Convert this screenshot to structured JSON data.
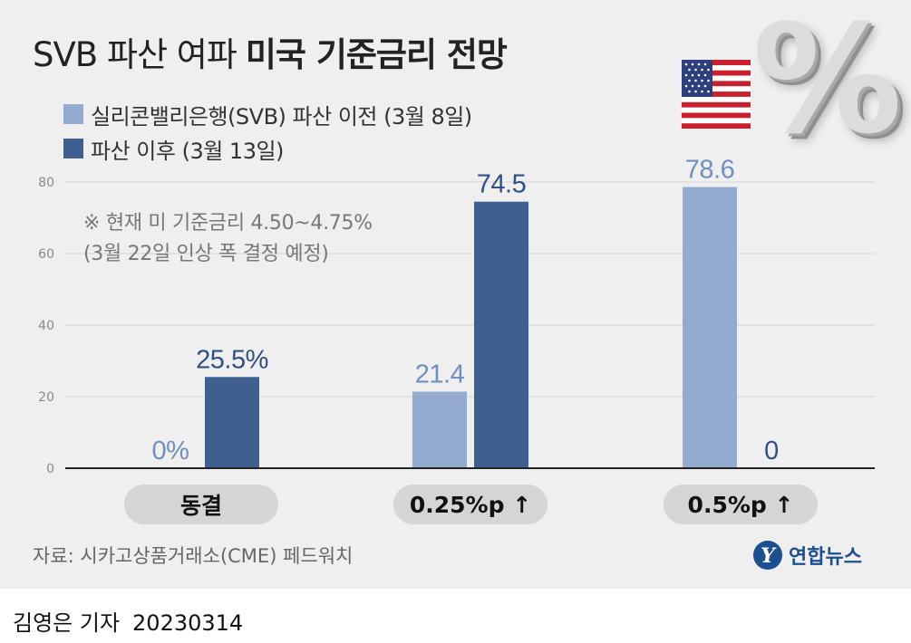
{
  "header": {
    "title_light": "SVB 파산 여파",
    "title_bold": "미국 기준금리 전망"
  },
  "legend": [
    {
      "label": "실리콘밸리은행(SVB) 파산 이전 (3월 8일)",
      "color": "#94abcf"
    },
    {
      "label": "파산 이후 (3월 13일)",
      "color": "#3e6090"
    }
  ],
  "note": {
    "line1": "※ 현재 미 기준금리 4.50~4.75%",
    "line2": "(3월 22일 인상 폭 결정 예정)"
  },
  "chart_data": {
    "type": "bar",
    "categories": [
      "동결",
      "0.25%p ↑",
      "0.5%p ↑"
    ],
    "series": [
      {
        "name": "실리콘밸리은행(SVB) 파산 이전 (3월 8일)",
        "values": [
          0,
          21.4,
          78.6
        ],
        "labels": [
          "0%",
          "21.4",
          "78.6"
        ],
        "color": "#94abcf",
        "label_color": "#6f8fc2"
      },
      {
        "name": "파산 이후 (3월 13일)",
        "values": [
          25.5,
          74.5,
          0
        ],
        "labels": [
          "25.5%",
          "74.5",
          "0"
        ],
        "color": "#3e6090",
        "label_color": "#2f5086"
      }
    ],
    "y_ticks": [
      0,
      20,
      40,
      60,
      80
    ],
    "ylim": [
      0,
      80
    ],
    "grid": true,
    "legend_position": "top-left"
  },
  "footer": {
    "source": "자료: 시카고상품거래소(CME) 페드워치",
    "agency": "연합뉴스",
    "agency_mark": "Y",
    "reporter": "김영은 기자",
    "date": "20230314"
  },
  "decor": {
    "percent_glyph": "%",
    "flag": "us-flag-icon"
  }
}
